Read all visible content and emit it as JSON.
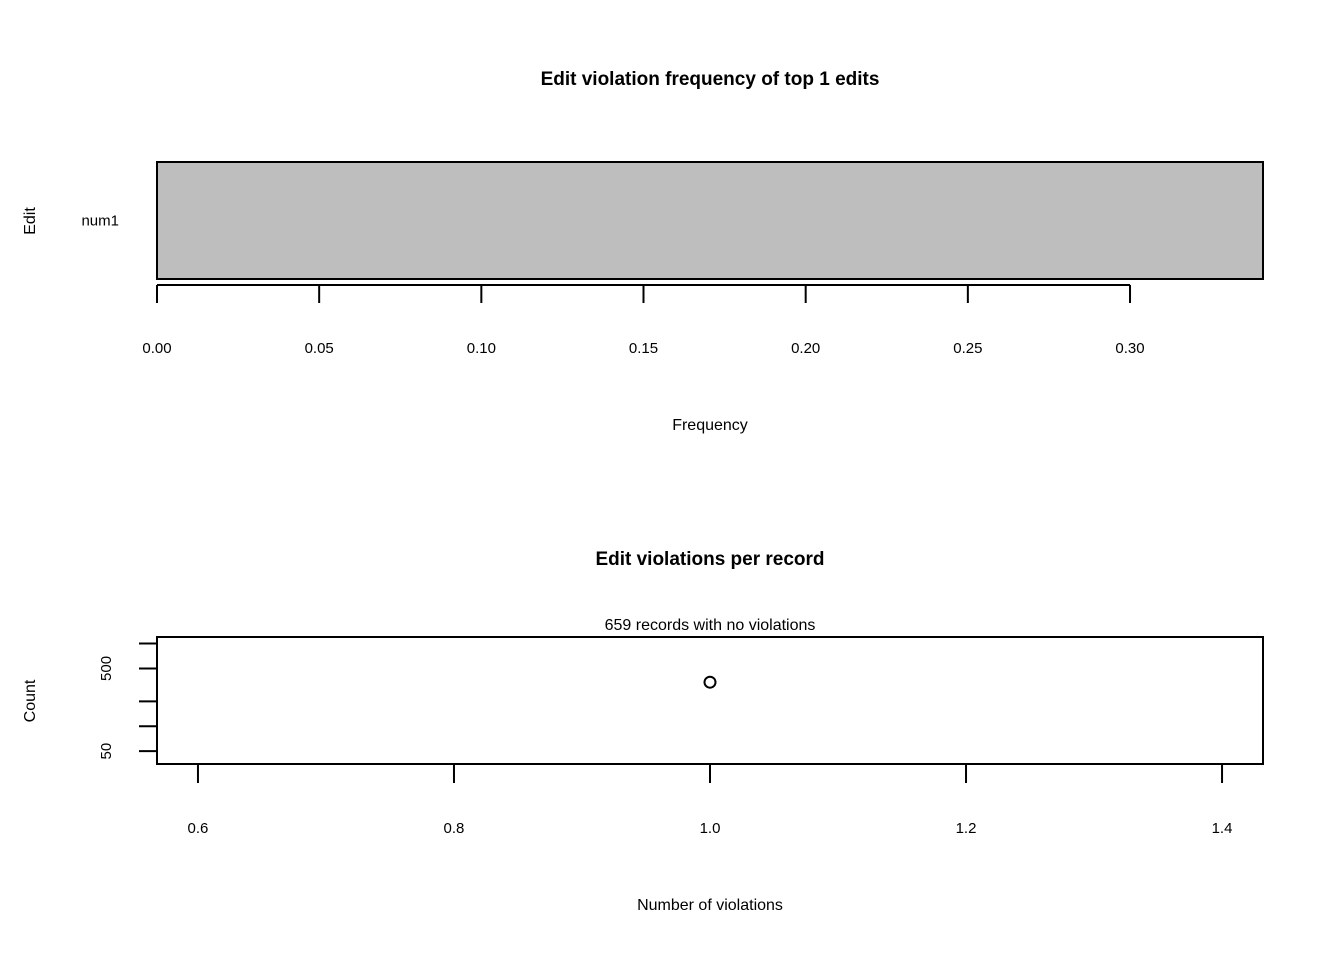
{
  "chart_data": [
    {
      "type": "bar",
      "orientation": "horizontal",
      "title": "Edit violation frequency of top 1 edits",
      "xlabel": "Frequency",
      "ylabel": "Edit",
      "categories": [
        "num1"
      ],
      "values": [
        0.341
      ],
      "xlim": [
        0,
        0.341
      ],
      "xticks": [
        "0.00",
        "0.05",
        "0.10",
        "0.15",
        "0.20",
        "0.25",
        "0.30"
      ],
      "bar_color": "#bebebe",
      "grid": false,
      "legend": "none"
    },
    {
      "type": "scatter",
      "title": "Edit violations per record",
      "subtitle": "659 records with no violations",
      "xlabel": "Number of violations",
      "ylabel": "Count",
      "y_scale": "log",
      "points": [
        {
          "x": 1.0,
          "y": 341
        }
      ],
      "xlim": [
        0.568,
        1.432
      ],
      "ylim": [
        35,
        1200
      ],
      "xticks": [
        "0.6",
        "0.8",
        "1.0",
        "1.2",
        "1.4"
      ],
      "yticks": [
        50,
        100,
        200,
        500,
        1000
      ],
      "ytick_labels": [
        "50",
        "",
        "",
        "500",
        ""
      ],
      "grid": false,
      "legend": "none"
    }
  ]
}
